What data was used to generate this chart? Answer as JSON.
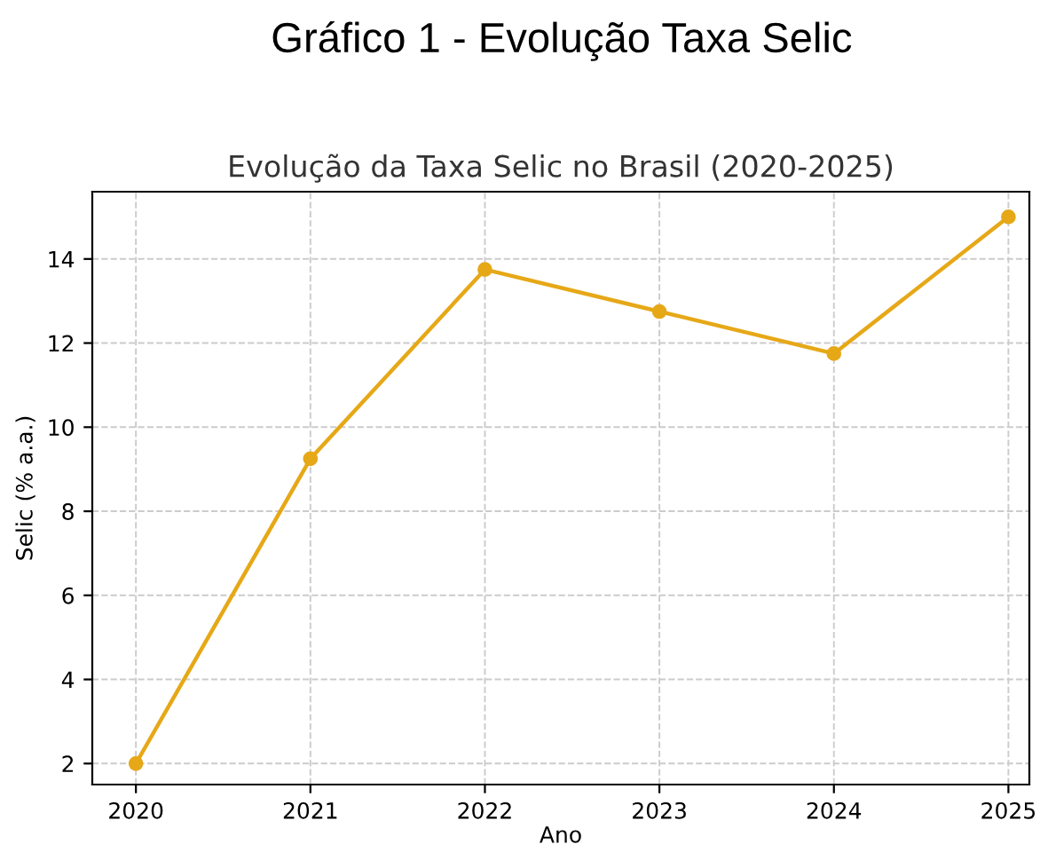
{
  "chart_data": {
    "type": "line",
    "title": "Evolução da Taxa Selic no Brasil (2020-2025)",
    "annotations": [
      "Gráfico 1 - Evolução Taxa Selic"
    ],
    "xlabel": "Ano",
    "ylabel": "Selic (% a.a.)",
    "x": [
      2020,
      2021,
      2022,
      2023,
      2024,
      2025
    ],
    "series": [
      {
        "color": "#e6a817",
        "values": [
          2.0,
          9.25,
          13.75,
          12.75,
          11.75,
          15.0
        ]
      }
    ],
    "xlim": [
      2019.75,
      2025.12
    ],
    "xticks": [
      2020,
      2021,
      2022,
      2023,
      2024,
      2025
    ],
    "ylim": [
      1.5,
      15.6
    ],
    "yticks": [
      2,
      4,
      6,
      8,
      10,
      12,
      14
    ],
    "grid": true,
    "marker": "circle",
    "line_style": "solid",
    "legend": false
  }
}
